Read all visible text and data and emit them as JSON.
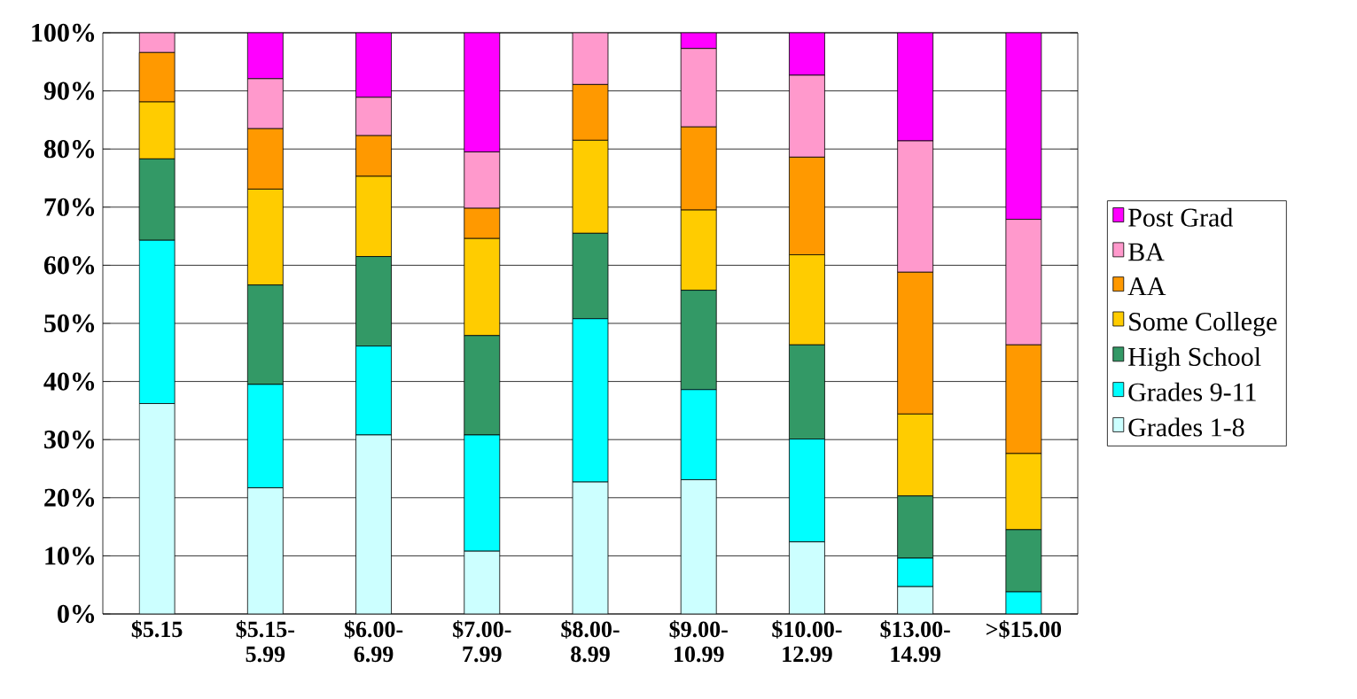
{
  "chart_data": {
    "type": "bar",
    "stacked": true,
    "categories": [
      "$5.15",
      "$5.15-5.99",
      "$6.00-6.99",
      "$7.00-7.99",
      "$8.00-8.99",
      "$9.00-10.99",
      "$10.00-12.99",
      "$13.00-14.99",
      ">$15.00"
    ],
    "series": [
      {
        "name": "Grades 1-8",
        "color": "#ccffff",
        "values": [
          36.2,
          21.7,
          30.8,
          10.8,
          22.7,
          23.1,
          12.4,
          4.7,
          0
        ]
      },
      {
        "name": "Grades 9-11",
        "color": "#00ffff",
        "values": [
          28.1,
          17.8,
          15.3,
          20.0,
          28.1,
          15.5,
          17.7,
          4.9,
          3.8
        ]
      },
      {
        "name": "High School",
        "color": "#339966",
        "values": [
          14.0,
          17.1,
          15.4,
          17.1,
          14.7,
          17.1,
          16.2,
          10.7,
          10.7
        ]
      },
      {
        "name": "Some College",
        "color": "#ffcc00",
        "values": [
          9.8,
          16.5,
          13.8,
          16.7,
          16.0,
          13.8,
          15.5,
          14.1,
          13.1
        ]
      },
      {
        "name": "AA",
        "color": "#ff9900",
        "values": [
          8.5,
          10.4,
          7.0,
          5.2,
          9.6,
          14.3,
          16.8,
          24.4,
          18.7
        ]
      },
      {
        "name": "BA",
        "color": "#ff99cc",
        "values": [
          3.4,
          8.6,
          6.6,
          9.7,
          8.9,
          13.5,
          14.1,
          22.6,
          21.6
        ]
      },
      {
        "name": "Post Grad",
        "color": "#ff00ff",
        "values": [
          0,
          7.9,
          11.1,
          20.5,
          0,
          2.7,
          7.3,
          18.6,
          32.1
        ]
      }
    ],
    "ylim": [
      0,
      100
    ],
    "yticks": [
      {
        "value": 0,
        "label": "0%"
      },
      {
        "value": 10,
        "label": "10%"
      },
      {
        "value": 20,
        "label": "20%"
      },
      {
        "value": 30,
        "label": "30%"
      },
      {
        "value": 40,
        "label": "40%"
      },
      {
        "value": 50,
        "label": "50%"
      },
      {
        "value": 60,
        "label": "60%"
      },
      {
        "value": 70,
        "label": "70%"
      },
      {
        "value": 80,
        "label": "80%"
      },
      {
        "value": 90,
        "label": "90%"
      },
      {
        "value": 100,
        "label": "100%"
      }
    ],
    "grid": "y",
    "legend": "right"
  }
}
